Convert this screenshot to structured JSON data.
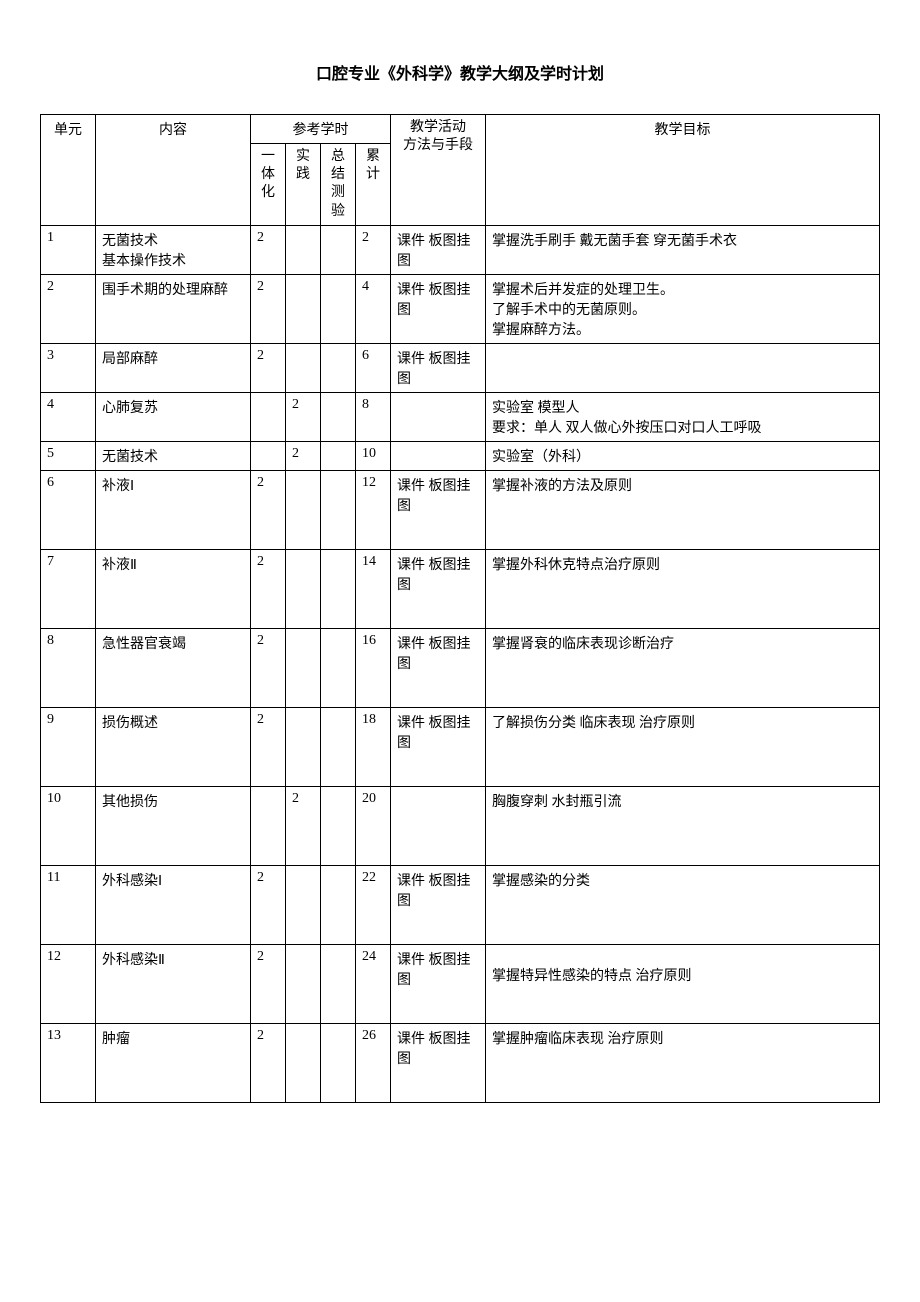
{
  "title": "口腔专业《外科学》教学大纲及学时计划",
  "headers": {
    "unit": "单元",
    "content": "内容",
    "hours": "参考学时",
    "h1": "一体化",
    "h2": "实践",
    "h3": "总结测验",
    "h4": "累计",
    "method": "教学活动方法与手段",
    "goal": "教学目标"
  },
  "rows": [
    {
      "unit": "1",
      "content": "无菌技术\n基本操作技术",
      "h1": "2",
      "h2": "",
      "h3": "",
      "h4": "2",
      "method": "课件 板图挂图",
      "goal": "掌握洗手刷手 戴无菌手套 穿无菌手术衣",
      "tall": false
    },
    {
      "unit": "2",
      "content": "围手术期的处理麻醉",
      "h1": "2",
      "h2": "",
      "h3": "",
      "h4": "4",
      "method": "课件 板图挂图",
      "goal": "掌握术后并发症的处理卫生。\n了解手术中的无菌原则。\n掌握麻醉方法。",
      "tall": false
    },
    {
      "unit": "3",
      "content": "局部麻醉",
      "h1": "2",
      "h2": "",
      "h3": "",
      "h4": "6",
      "method": "课件 板图挂图",
      "goal": "",
      "tall": false
    },
    {
      "unit": "4",
      "content": "心肺复苏",
      "h1": "",
      "h2": "2",
      "h3": "",
      "h4": "8",
      "method": "",
      "goal": "实验室 模型人\n要求：单人 双人做心外按压口对口人工呼吸",
      "tall": false
    },
    {
      "unit": "5",
      "content": "无菌技术",
      "h1": "",
      "h2": "2",
      "h3": "",
      "h4": "10",
      "method": "",
      "goal": "实验室（外科）",
      "tall": false
    },
    {
      "unit": "6",
      "content": "补液Ⅰ",
      "h1": "2",
      "h2": "",
      "h3": "",
      "h4": "12",
      "method": "课件 板图挂图",
      "goal": "掌握补液的方法及原则",
      "tall": true
    },
    {
      "unit": "7",
      "content": "补液Ⅱ",
      "h1": "2",
      "h2": "",
      "h3": "",
      "h4": "14",
      "method": "课件 板图挂图",
      "goal": "掌握外科休克特点治疗原则",
      "tall": true
    },
    {
      "unit": "8",
      "content": "急性器官衰竭",
      "h1": "2",
      "h2": "",
      "h3": "",
      "h4": "16",
      "method": "课件 板图挂图",
      "goal": "掌握肾衰的临床表现诊断治疗",
      "tall": true
    },
    {
      "unit": "9",
      "content": "损伤概述",
      "h1": "2",
      "h2": "",
      "h3": "",
      "h4": "18",
      "method": "课件 板图挂图",
      "goal": "了解损伤分类 临床表现 治疗原则",
      "tall": true
    },
    {
      "unit": "10",
      "content": "其他损伤",
      "h1": "",
      "h2": "2",
      "h3": "",
      "h4": "20",
      "method": "",
      "goal": "胸腹穿刺 水封瓶引流",
      "tall": true
    },
    {
      "unit": "11",
      "content": "外科感染Ⅰ",
      "h1": "2",
      "h2": "",
      "h3": "",
      "h4": "22",
      "method": "课件 板图挂图",
      "goal": "掌握感染的分类",
      "tall": true
    },
    {
      "unit": "12",
      "content": "外科感染Ⅱ",
      "h1": "2",
      "h2": "",
      "h3": "",
      "h4": "24",
      "method": "课件 板图挂图",
      "goal": "\n掌握特异性感染的特点 治疗原则",
      "tall": true
    },
    {
      "unit": "13",
      "content": "肿瘤",
      "h1": "2",
      "h2": "",
      "h3": "",
      "h4": "26",
      "method": "课件 板图挂图",
      "goal": "掌握肿瘤临床表现 治疗原则",
      "tall": true
    }
  ]
}
